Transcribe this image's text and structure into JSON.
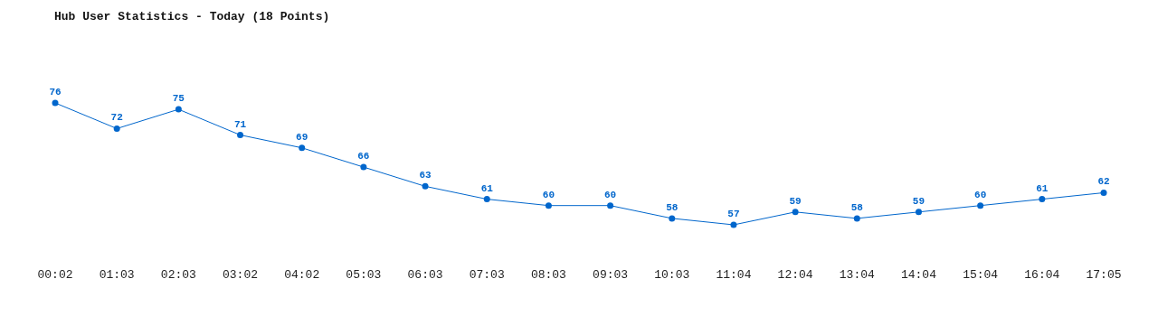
{
  "chart_data": {
    "type": "line",
    "title": "Hub User Statistics - Today (18 Points)",
    "categories": [
      "00:02",
      "01:03",
      "02:03",
      "03:02",
      "04:02",
      "05:03",
      "06:03",
      "07:03",
      "08:03",
      "09:03",
      "10:03",
      "11:04",
      "12:04",
      "13:04",
      "14:04",
      "15:04",
      "16:04",
      "17:05"
    ],
    "series": [
      {
        "color": "#0066cc",
        "values": [
          76,
          72,
          75,
          71,
          69,
          66,
          63,
          61,
          60,
          60,
          58,
          57,
          59,
          58,
          59,
          60,
          61,
          62
        ]
      }
    ],
    "data_labels": true,
    "marker": "circle",
    "line_style": "solid",
    "tick_labels": "x"
  }
}
